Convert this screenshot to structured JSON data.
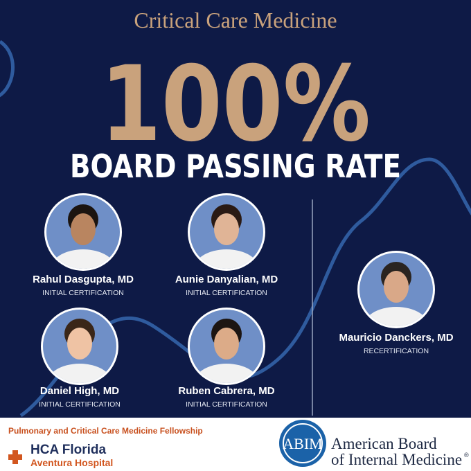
{
  "header": {
    "subtitle": "Critical Care Medicine",
    "headline": "100%",
    "tagline": "BOARD PASSING RATE"
  },
  "people": [
    {
      "name": "Rahul Dasgupta, MD",
      "role": "INITIAL CERTIFICATION"
    },
    {
      "name": "Aunie Danyalian, MD",
      "role": "INITIAL CERTIFICATION"
    },
    {
      "name": "Daniel High, MD",
      "role": "INITIAL CERTIFICATION"
    },
    {
      "name": "Ruben Cabrera, MD",
      "role": "INITIAL CERTIFICATION"
    },
    {
      "name": "Mauricio Danckers, MD",
      "role": "RECERTIFICATION"
    }
  ],
  "footer": {
    "program": "Pulmonary and Critical Care Medicine  Fellowship",
    "hospital_line1": "HCA Florida",
    "hospital_line2": "Aventura Hospital",
    "abim_logo": "ABIM",
    "abim_line1": "American Board",
    "abim_line2": "of Internal Medicine",
    "abim_mark": "®"
  }
}
